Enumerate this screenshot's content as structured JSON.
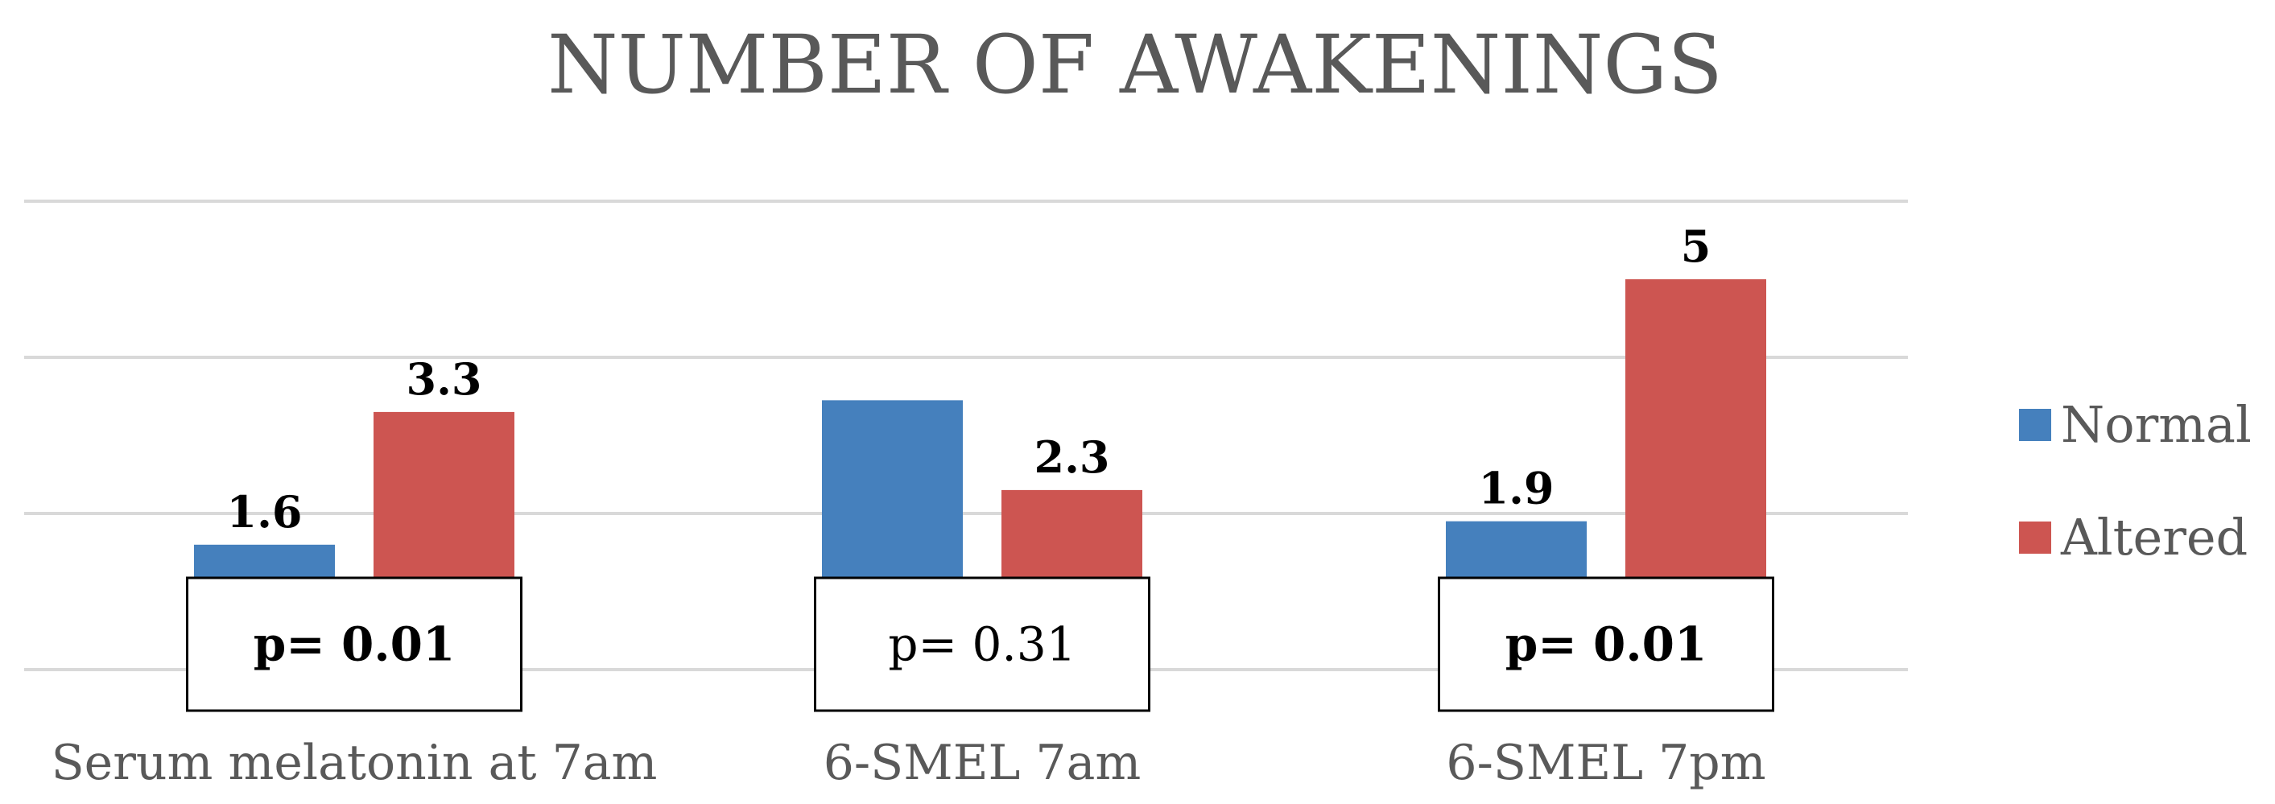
{
  "chart_data": {
    "type": "bar",
    "title": "NUMBER OF AWAKENINGS",
    "categories": [
      "Serum melatonin at 7am",
      "6-SMEL 7am",
      "6-SMEL 7pm"
    ],
    "series": [
      {
        "name": "Normal",
        "color": "#4580bd",
        "values": [
          1.6,
          3.45,
          1.9
        ],
        "labels": [
          "1.6",
          "",
          "1.9"
        ]
      },
      {
        "name": "Altered",
        "color": "#cd5551",
        "values": [
          3.3,
          2.3,
          5
        ],
        "labels": [
          "3.3",
          "2.3",
          "5"
        ]
      }
    ],
    "ylim": [
      0,
      6
    ],
    "gridlines": [
      0,
      2,
      4,
      6
    ],
    "y_tick_labels_shown": false,
    "grid": true,
    "legend_position": "right",
    "annotations": [
      {
        "category": "Serum melatonin at 7am",
        "text": "p= 0.01",
        "bold": true
      },
      {
        "category": "6-SMEL 7am",
        "text": "p= 0.31",
        "bold": false
      },
      {
        "category": "6-SMEL 7pm",
        "text": "p= 0.01",
        "bold": true
      }
    ]
  }
}
